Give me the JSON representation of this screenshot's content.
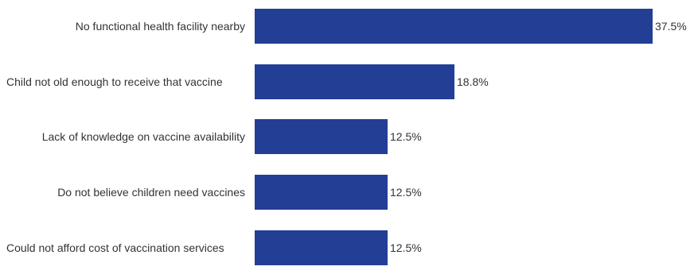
{
  "chart_data": {
    "type": "bar",
    "orientation": "horizontal",
    "title": "",
    "xlabel": "",
    "ylabel": "",
    "categories": [
      "No functional health facility nearby",
      "Child not old enough to receive that vaccine",
      "Lack of knowledge on vaccine availability",
      "Do not believe children need vaccines",
      "Could not afford cost of vaccination services"
    ],
    "values": [
      37.5,
      18.8,
      12.5,
      12.5,
      12.5
    ],
    "value_labels": [
      "37.5%",
      "18.8%",
      "12.5%",
      "12.5%",
      "12.5%"
    ],
    "xlim": [
      0,
      37.5
    ],
    "unit": "%",
    "grid": false,
    "legend": "none",
    "bar_color": "#233e95"
  }
}
